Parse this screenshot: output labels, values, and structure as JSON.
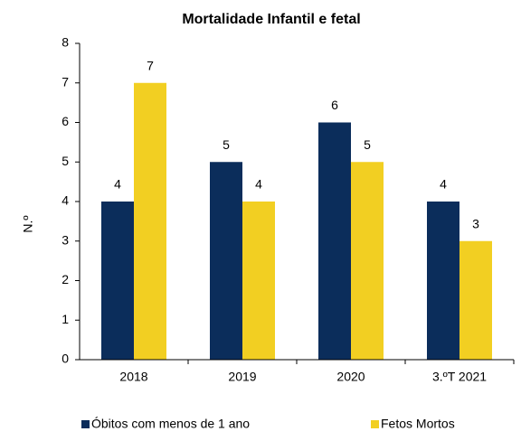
{
  "chart_data": {
    "type": "bar",
    "title": "Mortalidade Infantil e fetal",
    "y_label": "N.º",
    "categories": [
      "2018",
      "2019",
      "2020",
      "3.ºT 2021"
    ],
    "series": [
      {
        "name": "Óbitos com menos de 1 ano",
        "color": "#0b2d5b",
        "values": [
          4,
          5,
          6,
          4
        ]
      },
      {
        "name": "Fetos Mortos",
        "color": "#f2cf22",
        "values": [
          7,
          4,
          5,
          3
        ]
      }
    ],
    "ylim": [
      0,
      8
    ],
    "yticks": [
      0,
      1,
      2,
      3,
      4,
      5,
      6,
      7,
      8
    ]
  }
}
